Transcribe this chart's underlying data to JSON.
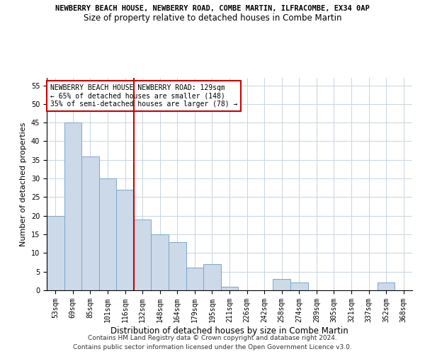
{
  "title": "NEWBERRY BEACH HOUSE, NEWBERRY ROAD, COMBE MARTIN, ILFRACOMBE, EX34 0AP",
  "subtitle": "Size of property relative to detached houses in Combe Martin",
  "xlabel": "Distribution of detached houses by size in Combe Martin",
  "ylabel": "Number of detached properties",
  "categories": [
    "53sqm",
    "69sqm",
    "85sqm",
    "101sqm",
    "116sqm",
    "132sqm",
    "148sqm",
    "164sqm",
    "179sqm",
    "195sqm",
    "211sqm",
    "226sqm",
    "242sqm",
    "258sqm",
    "274sqm",
    "289sqm",
    "305sqm",
    "321sqm",
    "337sqm",
    "352sqm",
    "368sqm"
  ],
  "values": [
    20,
    45,
    36,
    30,
    27,
    19,
    15,
    13,
    6,
    7,
    1,
    0,
    0,
    3,
    2,
    0,
    0,
    0,
    0,
    2,
    0
  ],
  "bar_color": "#ccd9e8",
  "bar_edge_color": "#7aa8cc",
  "vline_x_index": 5,
  "vline_color": "#cc0000",
  "annotation_text": "NEWBERRY BEACH HOUSE NEWBERRY ROAD: 129sqm\n← 65% of detached houses are smaller (148)\n35% of semi-detached houses are larger (78) →",
  "annotation_box_color": "#ffffff",
  "annotation_box_edge_color": "#cc0000",
  "ylim": [
    0,
    57
  ],
  "yticks": [
    0,
    5,
    10,
    15,
    20,
    25,
    30,
    35,
    40,
    45,
    50,
    55
  ],
  "footer_line1": "Contains HM Land Registry data © Crown copyright and database right 2024.",
  "footer_line2": "Contains public sector information licensed under the Open Government Licence v3.0.",
  "background_color": "#ffffff",
  "grid_color": "#c8d4e0",
  "title_fontsize": 7.5,
  "subtitle_fontsize": 8.5,
  "ylabel_fontsize": 8,
  "xlabel_fontsize": 8.5,
  "tick_fontsize": 7,
  "annotation_fontsize": 7,
  "footer_fontsize": 6.5
}
